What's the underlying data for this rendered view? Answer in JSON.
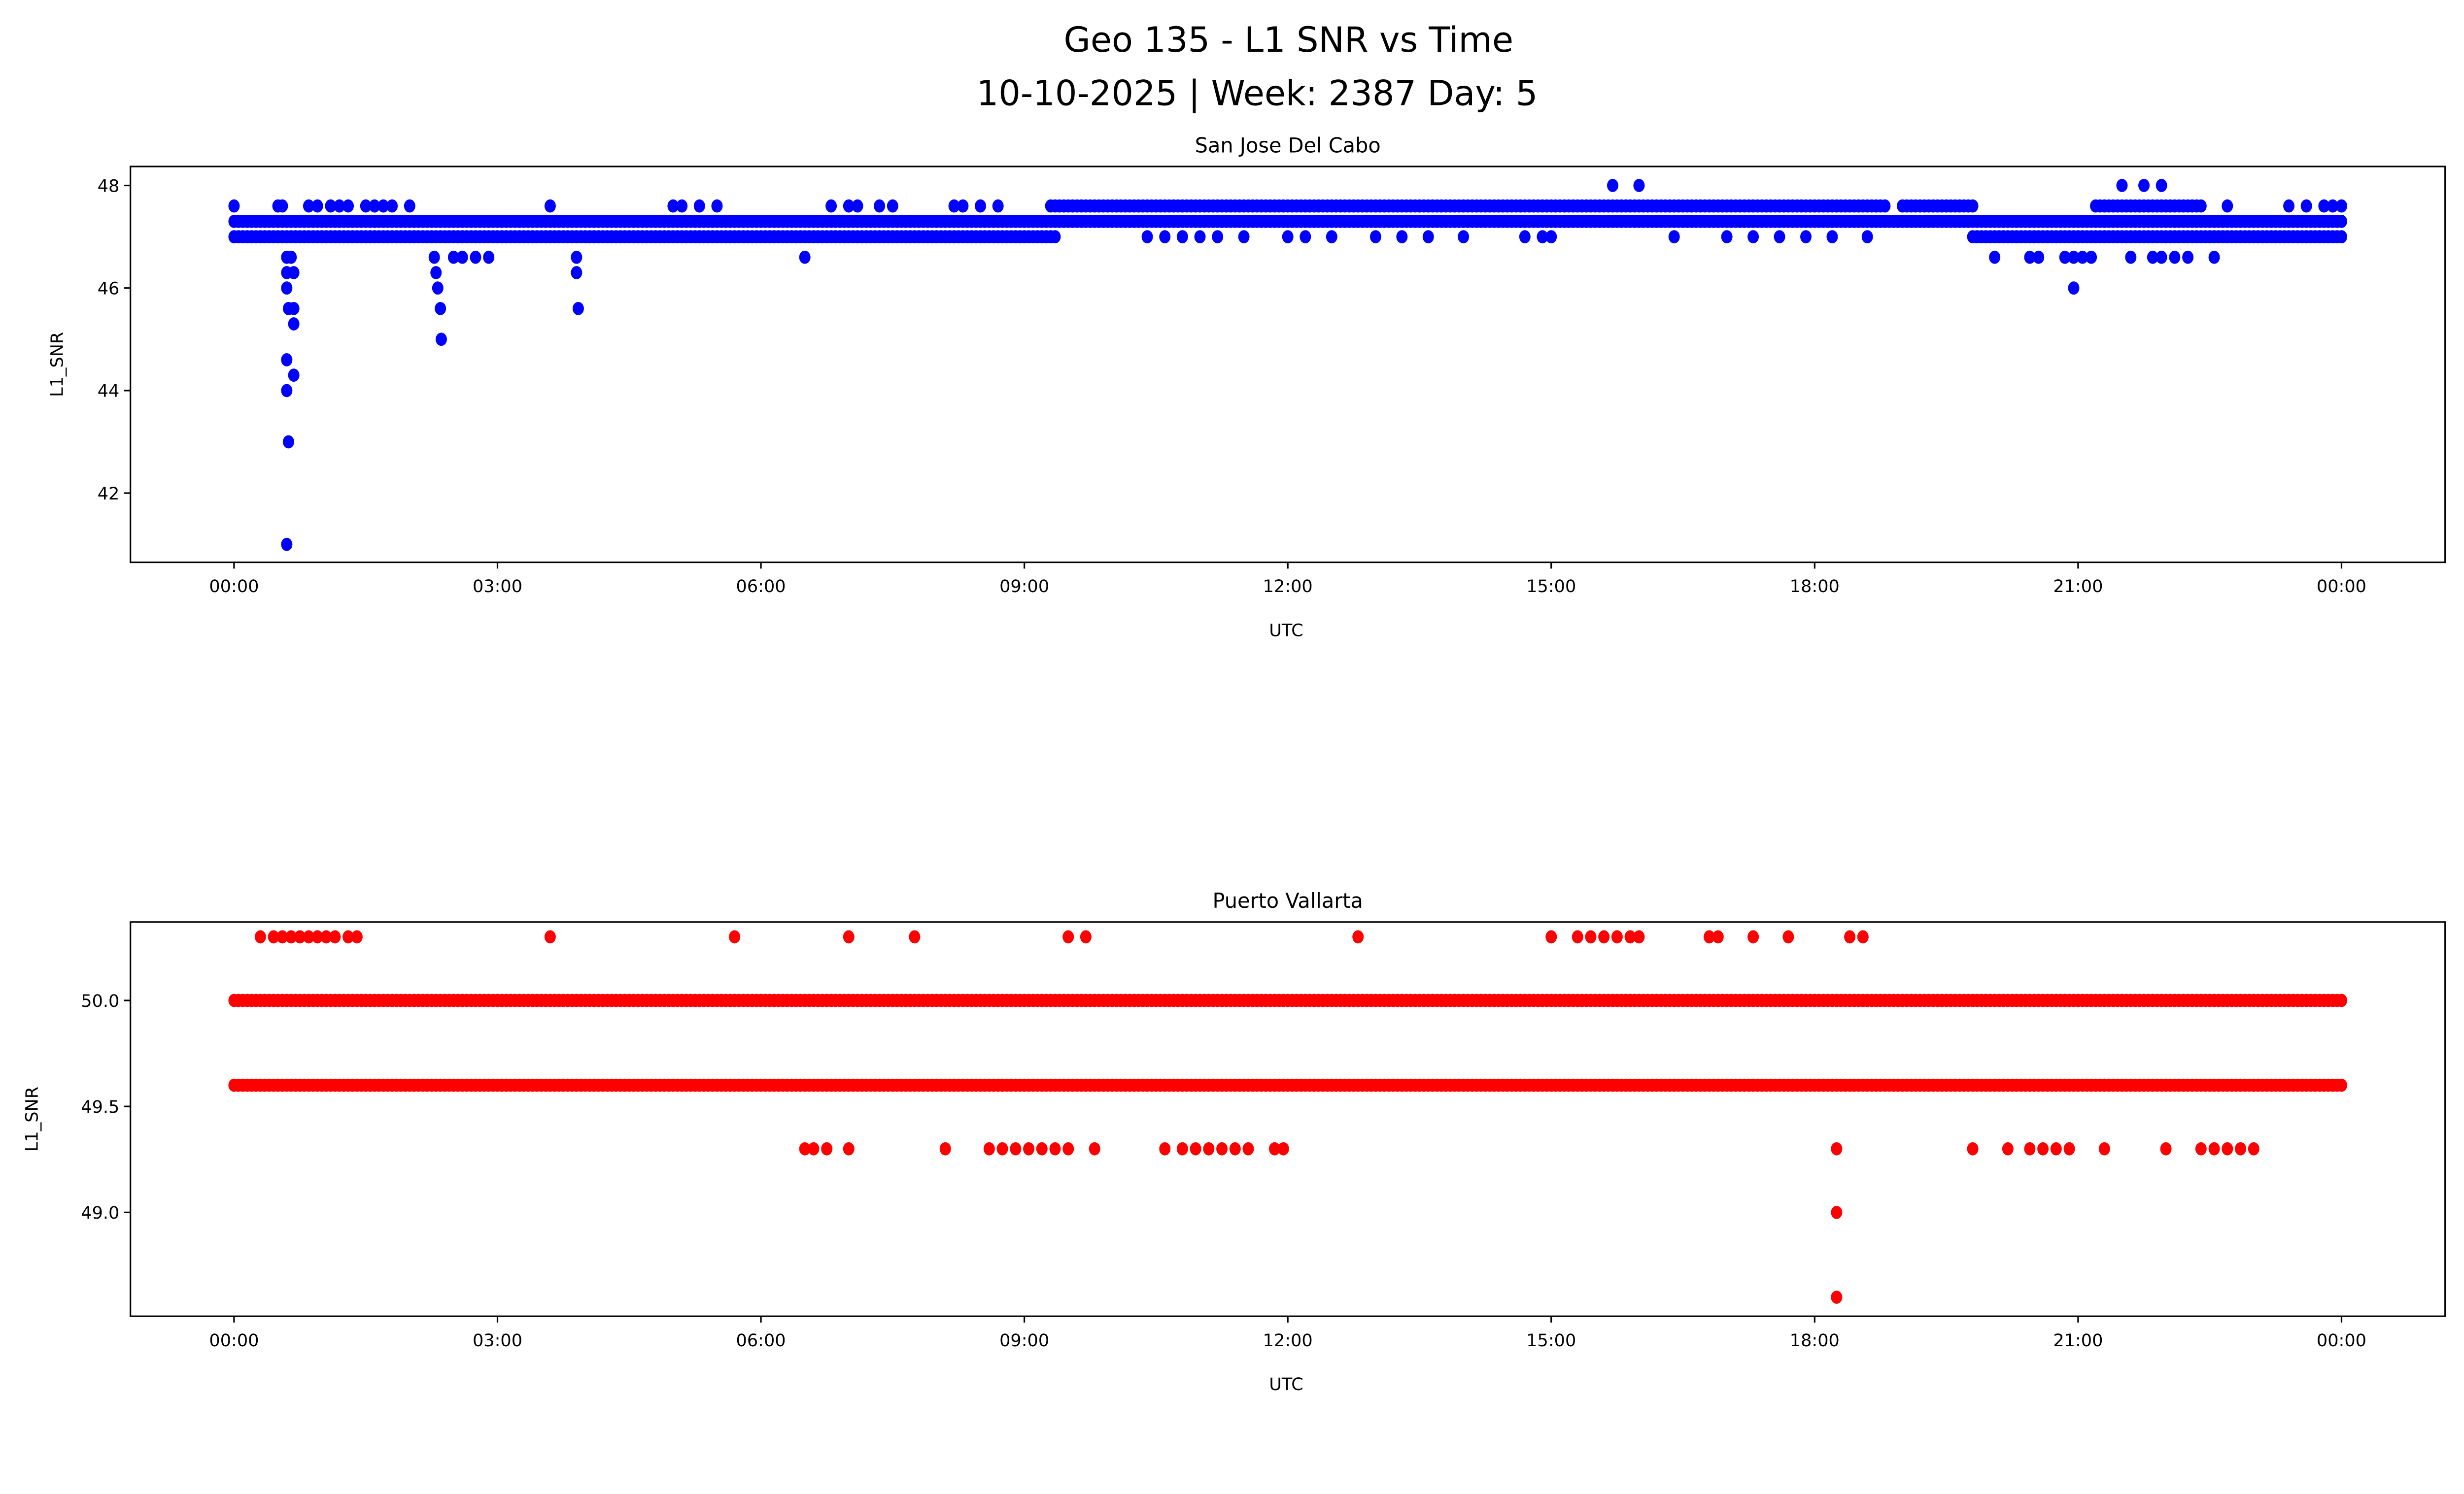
{
  "title_line1": "Geo 135 - L1 SNR vs Time",
  "title_line2": "10-10-2025 | Week: 2387 Day: 5",
  "chart_data": [
    {
      "type": "scatter",
      "title": "San Jose Del Cabo",
      "xlabel": "UTC",
      "ylabel": "L1_SNR",
      "color": "#0000ff",
      "xlim_hours": [
        -1.18,
        25.18
      ],
      "ylim": [
        40.65,
        48.37
      ],
      "xticks": [
        {
          "h": 0,
          "label": "00:00"
        },
        {
          "h": 3,
          "label": "03:00"
        },
        {
          "h": 6,
          "label": "06:00"
        },
        {
          "h": 9,
          "label": "09:00"
        },
        {
          "h": 12,
          "label": "12:00"
        },
        {
          "h": 15,
          "label": "15:00"
        },
        {
          "h": 18,
          "label": "18:00"
        },
        {
          "h": 21,
          "label": "21:00"
        },
        {
          "h": 24,
          "label": "00:00"
        }
      ],
      "yticks": [
        {
          "v": 42,
          "label": "42"
        },
        {
          "v": 44,
          "label": "44"
        },
        {
          "v": 46,
          "label": "46"
        },
        {
          "v": 48,
          "label": "48"
        }
      ],
      "dense_runs": [
        {
          "y": 47.3,
          "from": 0,
          "to": 24
        },
        {
          "y": 47.0,
          "from": 0,
          "to": 9.35
        },
        {
          "y": 47.0,
          "from": 19.8,
          "to": 24
        },
        {
          "y": 47.6,
          "from": 9.3,
          "to": 18.8
        },
        {
          "y": 47.6,
          "from": 19.0,
          "to": 19.8
        },
        {
          "y": 47.6,
          "from": 21.2,
          "to": 22.4
        }
      ],
      "points": [
        [
          0,
          47.6
        ],
        [
          0.5,
          47.6
        ],
        [
          0.55,
          47.6
        ],
        [
          0.85,
          47.6
        ],
        [
          0.95,
          47.6
        ],
        [
          1.1,
          47.6
        ],
        [
          1.2,
          47.6
        ],
        [
          1.3,
          47.6
        ],
        [
          1.5,
          47.6
        ],
        [
          1.6,
          47.6
        ],
        [
          1.7,
          47.6
        ],
        [
          1.8,
          47.6
        ],
        [
          2.0,
          47.6
        ],
        [
          3.6,
          47.6
        ],
        [
          5.0,
          47.6
        ],
        [
          5.1,
          47.6
        ],
        [
          5.3,
          47.6
        ],
        [
          5.5,
          47.6
        ],
        [
          6.8,
          47.6
        ],
        [
          7.0,
          47.6
        ],
        [
          7.1,
          47.6
        ],
        [
          7.35,
          47.6
        ],
        [
          7.5,
          47.6
        ],
        [
          8.2,
          47.6
        ],
        [
          8.3,
          47.6
        ],
        [
          8.5,
          47.6
        ],
        [
          8.7,
          47.6
        ],
        [
          10.4,
          47.0
        ],
        [
          10.6,
          47.0
        ],
        [
          10.8,
          47.0
        ],
        [
          11.0,
          47.0
        ],
        [
          11.2,
          47.0
        ],
        [
          11.5,
          47.0
        ],
        [
          12.0,
          47.0
        ],
        [
          12.2,
          47.0
        ],
        [
          12.5,
          47.0
        ],
        [
          13.0,
          47.0
        ],
        [
          13.3,
          47.0
        ],
        [
          13.6,
          47.0
        ],
        [
          14.0,
          47.0
        ],
        [
          14.7,
          47.0
        ],
        [
          14.9,
          47.0
        ],
        [
          15.0,
          47.0
        ],
        [
          16.4,
          47.0
        ],
        [
          17.0,
          47.0
        ],
        [
          17.3,
          47.0
        ],
        [
          17.6,
          47.0
        ],
        [
          17.9,
          47.0
        ],
        [
          18.2,
          47.0
        ],
        [
          18.6,
          47.0
        ],
        [
          0.6,
          46.6
        ],
        [
          0.65,
          46.6
        ],
        [
          0.6,
          46.3
        ],
        [
          0.68,
          46.3
        ],
        [
          0.6,
          46.0
        ],
        [
          0.62,
          45.6
        ],
        [
          0.68,
          45.6
        ],
        [
          0.68,
          45.3
        ],
        [
          0.6,
          44.6
        ],
        [
          0.68,
          44.3
        ],
        [
          0.6,
          44.0
        ],
        [
          0.62,
          43.0
        ],
        [
          0.6,
          41.0
        ],
        [
          2.28,
          46.6
        ],
        [
          2.5,
          46.6
        ],
        [
          2.6,
          46.6
        ],
        [
          2.75,
          46.6
        ],
        [
          2.9,
          46.6
        ],
        [
          2.3,
          46.3
        ],
        [
          2.32,
          46.0
        ],
        [
          2.35,
          45.6
        ],
        [
          2.36,
          45.0
        ],
        [
          3.9,
          46.6
        ],
        [
          3.9,
          46.3
        ],
        [
          3.92,
          45.6
        ],
        [
          6.5,
          46.6
        ],
        [
          15.7,
          48
        ],
        [
          16.0,
          48
        ],
        [
          21.5,
          48
        ],
        [
          21.75,
          48
        ],
        [
          21.95,
          48
        ],
        [
          20.05,
          46.6
        ],
        [
          20.45,
          46.6
        ],
        [
          20.55,
          46.6
        ],
        [
          20.85,
          46.6
        ],
        [
          20.95,
          46.6
        ],
        [
          21.05,
          46.6
        ],
        [
          21.15,
          46.6
        ],
        [
          20.95,
          46.0
        ],
        [
          21.6,
          46.6
        ],
        [
          21.85,
          46.6
        ],
        [
          21.95,
          46.6
        ],
        [
          22.1,
          46.6
        ],
        [
          22.25,
          46.6
        ],
        [
          22.55,
          46.6
        ],
        [
          22.7,
          47.6
        ],
        [
          23.4,
          47.6
        ],
        [
          23.6,
          47.6
        ],
        [
          23.8,
          47.6
        ],
        [
          23.9,
          47.6
        ],
        [
          24,
          47.6
        ]
      ]
    },
    {
      "type": "scatter",
      "title": "Puerto Vallarta",
      "xlabel": "UTC",
      "ylabel": "L1_SNR",
      "color": "#ff0000",
      "xlim_hours": [
        -1.18,
        25.18
      ],
      "ylim": [
        48.51,
        50.37
      ],
      "xticks": [
        {
          "h": 0,
          "label": "00:00"
        },
        {
          "h": 3,
          "label": "03:00"
        },
        {
          "h": 6,
          "label": "06:00"
        },
        {
          "h": 9,
          "label": "09:00"
        },
        {
          "h": 12,
          "label": "12:00"
        },
        {
          "h": 15,
          "label": "15:00"
        },
        {
          "h": 18,
          "label": "18:00"
        },
        {
          "h": 21,
          "label": "21:00"
        },
        {
          "h": 24,
          "label": "00:00"
        }
      ],
      "yticks": [
        {
          "v": 49.0,
          "label": "49.0"
        },
        {
          "v": 49.5,
          "label": "49.5"
        },
        {
          "v": 50.0,
          "label": "50.0"
        }
      ],
      "dense_runs": [
        {
          "y": 50.0,
          "from": 0,
          "to": 24
        },
        {
          "y": 49.6,
          "from": 0,
          "to": 24
        }
      ],
      "points": [
        [
          0.3,
          50.3
        ],
        [
          0.45,
          50.3
        ],
        [
          0.55,
          50.3
        ],
        [
          0.65,
          50.3
        ],
        [
          0.75,
          50.3
        ],
        [
          0.85,
          50.3
        ],
        [
          0.95,
          50.3
        ],
        [
          1.05,
          50.3
        ],
        [
          1.15,
          50.3
        ],
        [
          1.3,
          50.3
        ],
        [
          1.4,
          50.3
        ],
        [
          3.6,
          50.3
        ],
        [
          5.7,
          50.3
        ],
        [
          7.0,
          50.3
        ],
        [
          7.75,
          50.3
        ],
        [
          9.5,
          50.3
        ],
        [
          9.7,
          50.3
        ],
        [
          12.8,
          50.3
        ],
        [
          15.0,
          50.3
        ],
        [
          15.3,
          50.3
        ],
        [
          15.45,
          50.3
        ],
        [
          15.6,
          50.3
        ],
        [
          15.75,
          50.3
        ],
        [
          15.9,
          50.3
        ],
        [
          16.0,
          50.3
        ],
        [
          16.8,
          50.3
        ],
        [
          16.9,
          50.3
        ],
        [
          17.3,
          50.3
        ],
        [
          17.7,
          50.3
        ],
        [
          18.4,
          50.3
        ],
        [
          18.55,
          50.3
        ],
        [
          6.5,
          49.3
        ],
        [
          6.6,
          49.3
        ],
        [
          6.75,
          49.3
        ],
        [
          7.0,
          49.3
        ],
        [
          8.1,
          49.3
        ],
        [
          8.6,
          49.3
        ],
        [
          8.75,
          49.3
        ],
        [
          8.9,
          49.3
        ],
        [
          9.05,
          49.3
        ],
        [
          9.2,
          49.3
        ],
        [
          9.35,
          49.3
        ],
        [
          9.5,
          49.3
        ],
        [
          9.8,
          49.3
        ],
        [
          10.6,
          49.3
        ],
        [
          10.8,
          49.3
        ],
        [
          10.95,
          49.3
        ],
        [
          11.1,
          49.3
        ],
        [
          11.25,
          49.3
        ],
        [
          11.4,
          49.3
        ],
        [
          11.55,
          49.3
        ],
        [
          11.85,
          49.3
        ],
        [
          11.95,
          49.3
        ],
        [
          18.25,
          49.3
        ],
        [
          19.8,
          49.3
        ],
        [
          20.2,
          49.3
        ],
        [
          20.45,
          49.3
        ],
        [
          20.6,
          49.3
        ],
        [
          20.75,
          49.3
        ],
        [
          20.9,
          49.3
        ],
        [
          21.3,
          49.3
        ],
        [
          22.0,
          49.3
        ],
        [
          22.4,
          49.3
        ],
        [
          22.55,
          49.3
        ],
        [
          22.7,
          49.3
        ],
        [
          22.85,
          49.3
        ],
        [
          23.0,
          49.3
        ],
        [
          18.25,
          49.0
        ],
        [
          18.25,
          48.6
        ]
      ]
    }
  ]
}
